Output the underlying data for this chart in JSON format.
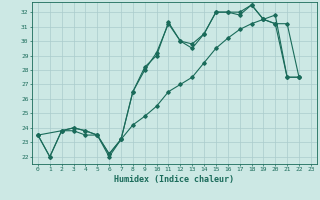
{
  "xlabel": "Humidex (Indice chaleur)",
  "bg_color": "#cce8e4",
  "grid_color": "#aacccc",
  "line_color": "#1a6b5a",
  "line1_x": [
    0,
    1,
    2,
    3,
    4,
    5,
    6,
    7,
    8,
    9,
    10,
    11,
    12,
    13,
    14,
    15,
    16,
    17,
    18,
    19,
    20,
    21,
    22
  ],
  "line1_y": [
    23.5,
    22.0,
    23.8,
    23.8,
    23.5,
    23.5,
    22.2,
    23.2,
    26.5,
    28.0,
    29.2,
    31.2,
    30.0,
    29.5,
    30.5,
    32.0,
    32.0,
    31.8,
    32.5,
    31.5,
    31.2,
    27.5,
    27.5
  ],
  "line2_x": [
    0,
    2,
    3,
    4,
    5,
    6,
    7,
    8,
    9,
    10,
    11,
    12,
    13,
    14,
    15,
    16,
    17,
    18,
    19,
    20,
    21,
    22
  ],
  "line2_y": [
    23.5,
    23.8,
    24.0,
    23.8,
    23.5,
    22.0,
    23.2,
    26.5,
    28.2,
    29.0,
    31.3,
    30.0,
    29.8,
    30.5,
    32.0,
    32.0,
    32.0,
    32.5,
    31.5,
    31.2,
    31.2,
    27.5
  ],
  "line3_x": [
    0,
    1,
    2,
    3,
    4,
    5,
    6,
    7,
    8,
    9,
    10,
    11,
    12,
    13,
    14,
    15,
    16,
    17,
    18,
    19,
    20,
    21,
    22
  ],
  "line3_y": [
    23.5,
    22.0,
    23.8,
    24.0,
    23.8,
    23.5,
    22.2,
    23.2,
    24.2,
    24.8,
    25.5,
    26.5,
    27.0,
    27.5,
    28.5,
    29.5,
    30.2,
    30.8,
    31.2,
    31.5,
    31.8,
    27.5,
    27.5
  ],
  "xlim": [
    -0.5,
    23.5
  ],
  "ylim": [
    21.5,
    32.7
  ],
  "xticks": [
    0,
    1,
    2,
    3,
    4,
    5,
    6,
    7,
    8,
    9,
    10,
    11,
    12,
    13,
    14,
    15,
    16,
    17,
    18,
    19,
    20,
    21,
    22,
    23
  ],
  "yticks": [
    22,
    23,
    24,
    25,
    26,
    27,
    28,
    29,
    30,
    31,
    32
  ]
}
